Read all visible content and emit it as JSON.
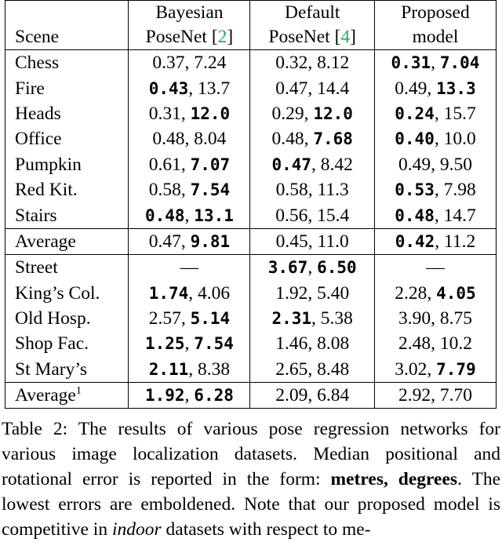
{
  "table": {
    "headers": {
      "scene": "Scene",
      "col1_line1": "Bayesian",
      "col1_line2": "PoseNet",
      "col1_ref": "2",
      "col2_line1": "Default",
      "col2_line2": "PoseNet",
      "col2_ref": "4",
      "col3_line1": "Proposed",
      "col3_line2": "model"
    },
    "indoor": [
      {
        "scene": "Chess",
        "c1": [
          "0.37",
          "7.24"
        ],
        "c1b": [
          false,
          false
        ],
        "c2": [
          "0.32",
          "8.12"
        ],
        "c2b": [
          false,
          false
        ],
        "c3": [
          "0.31",
          "7.04"
        ],
        "c3b": [
          true,
          true
        ]
      },
      {
        "scene": "Fire",
        "c1": [
          "0.43",
          "13.7"
        ],
        "c1b": [
          true,
          false
        ],
        "c2": [
          "0.47",
          "14.4"
        ],
        "c2b": [
          false,
          false
        ],
        "c3": [
          "0.49",
          "13.3"
        ],
        "c3b": [
          false,
          true
        ]
      },
      {
        "scene": "Heads",
        "c1": [
          "0.31",
          "12.0"
        ],
        "c1b": [
          false,
          true
        ],
        "c2": [
          "0.29",
          "12.0"
        ],
        "c2b": [
          false,
          true
        ],
        "c3": [
          "0.24",
          "15.7"
        ],
        "c3b": [
          true,
          false
        ]
      },
      {
        "scene": "Office",
        "c1": [
          "0.48",
          "8.04"
        ],
        "c1b": [
          false,
          false
        ],
        "c2": [
          "0.48",
          "7.68"
        ],
        "c2b": [
          false,
          true
        ],
        "c3": [
          "0.40",
          "10.0"
        ],
        "c3b": [
          true,
          false
        ]
      },
      {
        "scene": "Pumpkin",
        "c1": [
          "0.61",
          "7.07"
        ],
        "c1b": [
          false,
          true
        ],
        "c2": [
          "0.47",
          "8.42"
        ],
        "c2b": [
          true,
          false
        ],
        "c3": [
          "0.49",
          "9.50"
        ],
        "c3b": [
          false,
          false
        ]
      },
      {
        "scene": "Red Kit.",
        "c1": [
          "0.58",
          "7.54"
        ],
        "c1b": [
          false,
          true
        ],
        "c2": [
          "0.58",
          "11.3"
        ],
        "c2b": [
          false,
          false
        ],
        "c3": [
          "0.53",
          "7.98"
        ],
        "c3b": [
          true,
          false
        ]
      },
      {
        "scene": "Stairs",
        "c1": [
          "0.48",
          "13.1"
        ],
        "c1b": [
          true,
          true
        ],
        "c2": [
          "0.56",
          "15.4"
        ],
        "c2b": [
          false,
          false
        ],
        "c3": [
          "0.48",
          "14.7"
        ],
        "c3b": [
          true,
          false
        ]
      }
    ],
    "indoor_average": {
      "scene": "Average",
      "c1": [
        "0.47",
        "9.81"
      ],
      "c1b": [
        false,
        true
      ],
      "c2": [
        "0.45",
        "11.0"
      ],
      "c2b": [
        false,
        false
      ],
      "c3": [
        "0.42",
        "11.2"
      ],
      "c3b": [
        true,
        false
      ]
    },
    "outdoor": [
      {
        "scene": "Street",
        "c1": [
          "—"
        ],
        "c1b": [
          false
        ],
        "c2": [
          "3.67",
          "6.50"
        ],
        "c2b": [
          true,
          true
        ],
        "c3": [
          "—"
        ],
        "c3b": [
          false
        ]
      },
      {
        "scene": "King’s Col.",
        "c1": [
          "1.74",
          "4.06"
        ],
        "c1b": [
          true,
          false
        ],
        "c2": [
          "1.92",
          "5.40"
        ],
        "c2b": [
          false,
          false
        ],
        "c3": [
          "2.28",
          "4.05"
        ],
        "c3b": [
          false,
          true
        ]
      },
      {
        "scene": "Old Hosp.",
        "c1": [
          "2.57",
          "5.14"
        ],
        "c1b": [
          false,
          true
        ],
        "c2": [
          "2.31",
          "5.38"
        ],
        "c2b": [
          true,
          false
        ],
        "c3": [
          "3.90",
          "8.75"
        ],
        "c3b": [
          false,
          false
        ]
      },
      {
        "scene": "Shop Fac.",
        "c1": [
          "1.25",
          "7.54"
        ],
        "c1b": [
          true,
          true
        ],
        "c2": [
          "1.46",
          "8.08"
        ],
        "c2b": [
          false,
          false
        ],
        "c3": [
          "2.48",
          "10.2"
        ],
        "c3b": [
          false,
          false
        ]
      },
      {
        "scene": "St Mary’s",
        "c1": [
          "2.11",
          "8.38"
        ],
        "c1b": [
          true,
          false
        ],
        "c2": [
          "2.65",
          "8.48"
        ],
        "c2b": [
          false,
          false
        ],
        "c3": [
          "3.02",
          "7.79"
        ],
        "c3b": [
          false,
          true
        ]
      }
    ],
    "outdoor_average": {
      "scene": "Average",
      "sup": "1",
      "c1": [
        "1.92",
        "6.28"
      ],
      "c1b": [
        true,
        true
      ],
      "c2": [
        "2.09",
        "6.84"
      ],
      "c2b": [
        false,
        false
      ],
      "c3": [
        "2.92",
        "7.70"
      ],
      "c3b": [
        false,
        false
      ]
    }
  },
  "caption": {
    "part1": "Table 2: The results of various pose regression networks for various image localization datasets. Median positional and rotational error is reported in the form: ",
    "bold": "metres, degrees",
    "part2": ". The lowest errors are emboldened. Note that our proposed model is competitive in ",
    "italic": "indoor",
    "part3": " datasets with respect to me-"
  }
}
